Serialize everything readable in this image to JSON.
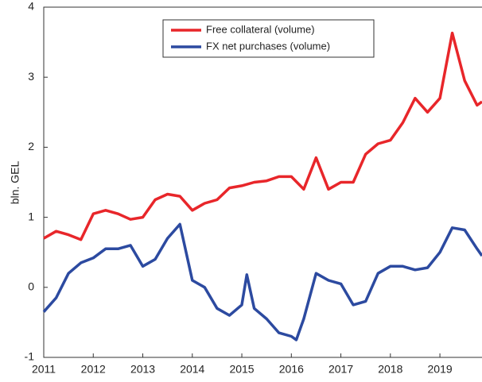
{
  "chart_data": {
    "type": "line",
    "y_label": "bln. GEL",
    "xlim": [
      2011,
      2019.85
    ],
    "xticks": [
      2011,
      2012,
      2013,
      2014,
      2015,
      2016,
      2017,
      2018,
      2019
    ],
    "ylim": [
      -1,
      4
    ],
    "yticks": [
      -1,
      0,
      1,
      2,
      3,
      4
    ],
    "legend": "upper center",
    "series": [
      {
        "name": "Free collateral (volume)",
        "color": "#e8262a",
        "x": [
          2011,
          2011.25,
          2011.5,
          2011.75,
          2012,
          2012.25,
          2012.5,
          2012.75,
          2013,
          2013.25,
          2013.5,
          2013.75,
          2014,
          2014.25,
          2014.5,
          2014.75,
          2015,
          2015.25,
          2015.5,
          2015.75,
          2016,
          2016.25,
          2016.5,
          2016.75,
          2017,
          2017.25,
          2017.5,
          2017.75,
          2018,
          2018.25,
          2018.5,
          2018.75,
          2019,
          2019.25,
          2019.5,
          2019.75,
          2019.85
        ],
        "values": [
          0.7,
          0.8,
          0.75,
          0.68,
          1.05,
          1.1,
          1.05,
          0.97,
          1.0,
          1.25,
          1.33,
          1.3,
          1.1,
          1.2,
          1.25,
          1.42,
          1.45,
          1.5,
          1.52,
          1.58,
          1.58,
          1.4,
          1.85,
          1.4,
          1.5,
          1.5,
          1.9,
          2.05,
          2.1,
          2.35,
          2.7,
          2.5,
          2.7,
          3.63,
          2.95,
          2.6,
          2.65
        ]
      },
      {
        "name": "FX net purchases (volume)",
        "color": "#2c4aa0",
        "x": [
          2011,
          2011.25,
          2011.5,
          2011.75,
          2012,
          2012.25,
          2012.5,
          2012.75,
          2013,
          2013.25,
          2013.5,
          2013.75,
          2014,
          2014.25,
          2014.5,
          2014.75,
          2015,
          2015.1,
          2015.25,
          2015.5,
          2015.75,
          2016,
          2016.1,
          2016.25,
          2016.5,
          2016.75,
          2017,
          2017.25,
          2017.5,
          2017.75,
          2018,
          2018.25,
          2018.5,
          2018.75,
          2019,
          2019.25,
          2019.5,
          2019.75,
          2019.85
        ],
        "values": [
          -0.35,
          -0.15,
          0.2,
          0.35,
          0.42,
          0.55,
          0.55,
          0.6,
          0.3,
          0.4,
          0.7,
          0.9,
          0.1,
          0.0,
          -0.3,
          -0.4,
          -0.25,
          0.18,
          -0.3,
          -0.45,
          -0.65,
          -0.7,
          -0.75,
          -0.45,
          0.2,
          0.1,
          0.05,
          -0.25,
          -0.2,
          0.2,
          0.3,
          0.3,
          0.25,
          0.28,
          0.5,
          0.85,
          0.82,
          0.55,
          0.45
        ]
      }
    ]
  }
}
